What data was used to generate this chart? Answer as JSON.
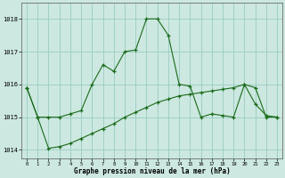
{
  "hours": [
    0,
    1,
    2,
    3,
    4,
    5,
    6,
    7,
    8,
    9,
    10,
    11,
    12,
    13,
    14,
    15,
    16,
    17,
    18,
    19,
    20,
    21,
    22,
    23
  ],
  "pressure_line1": [
    1015.9,
    1015.0,
    1015.0,
    1015.0,
    1015.1,
    1015.2,
    1016.0,
    1016.6,
    1016.4,
    1017.0,
    1017.05,
    1018.0,
    1018.0,
    1017.5,
    1016.0,
    1015.95,
    1015.0,
    1015.1,
    1015.05,
    1015.0,
    1016.0,
    1015.4,
    1015.05,
    1015.0
  ],
  "pressure_line2": [
    1015.9,
    1015.0,
    1014.05,
    1014.1,
    1014.2,
    1014.35,
    1014.5,
    1014.65,
    1014.8,
    1015.0,
    1015.15,
    1015.3,
    1015.45,
    1015.55,
    1015.65,
    1015.7,
    1015.75,
    1015.8,
    1015.85,
    1015.9,
    1016.0,
    1015.9,
    1015.0,
    1015.0
  ],
  "line_color": "#1a6b1a",
  "bg_color": "#cce8e0",
  "grid_color": "#99ccc2",
  "xlabel": "Graphe pression niveau de la mer (hPa)",
  "ylim": [
    1013.75,
    1018.5
  ],
  "xlim": [
    -0.5,
    23.5
  ],
  "yticks": [
    1014,
    1015,
    1016,
    1017,
    1018
  ],
  "xticks": [
    0,
    1,
    2,
    3,
    4,
    5,
    6,
    7,
    8,
    9,
    10,
    11,
    12,
    13,
    14,
    15,
    16,
    17,
    18,
    19,
    20,
    21,
    22,
    23
  ]
}
